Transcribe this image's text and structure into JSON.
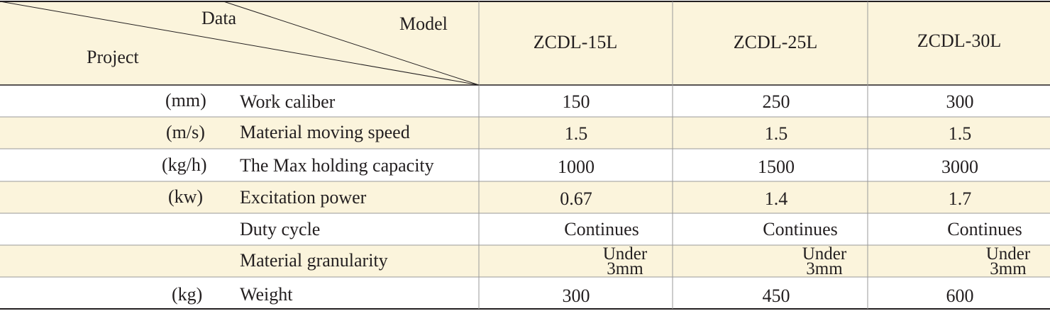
{
  "header": {
    "corner_data": "Data",
    "corner_model": "Model",
    "corner_project": "Project",
    "models": [
      "ZCDL-15L",
      "ZCDL-25L",
      "ZCDL-30L"
    ]
  },
  "rows": [
    {
      "unit": "(mm)",
      "label": "Work caliber",
      "values": [
        "150",
        "250",
        "300"
      ]
    },
    {
      "unit": "(m/s)",
      "label": "Material moving speed",
      "values": [
        "1.5",
        "1.5",
        "1.5"
      ]
    },
    {
      "unit": "(kg/h)",
      "label": "The Max holding capacity",
      "values": [
        "1000",
        "1500",
        "3000"
      ]
    },
    {
      "unit": "(kw)",
      "label": "Excitation power",
      "values": [
        "0.67",
        "1.4",
        "1.7"
      ]
    },
    {
      "unit": "",
      "label": "Duty cycle",
      "values": [
        "Continues",
        "Continues",
        "Continues"
      ]
    },
    {
      "unit": "",
      "label": "Material granularity",
      "values": [
        {
          "l1": "Under",
          "l2": "3mm"
        },
        {
          "l1": "Under",
          "l2": "3mm"
        },
        {
          "l1": "Under",
          "l2": "3mm"
        }
      ]
    },
    {
      "unit": "(kg)",
      "label": "Weight",
      "values": [
        "300",
        "450",
        "600"
      ]
    }
  ],
  "colors": {
    "header_bg": "#fbf4dc",
    "band_bg": "#fbf4dc",
    "plain_bg": "#ffffff",
    "rule": "#231f20",
    "grid": "#9a9a9a"
  }
}
